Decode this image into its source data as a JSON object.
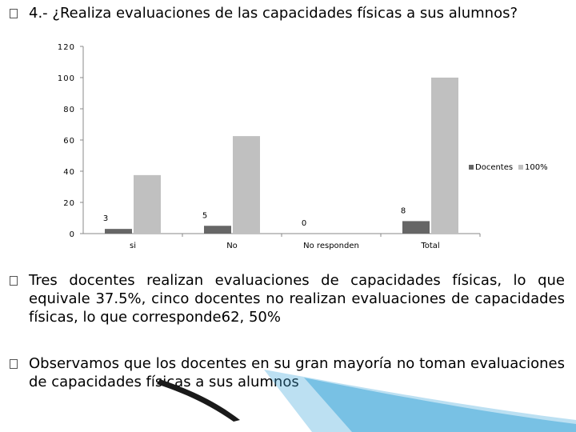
{
  "slide": {
    "title": "4.- ¿Realiza evaluaciones de las capacidades físicas a sus alumnos?",
    "paragraphs": [
      "Tres docentes realizan evaluaciones de capacidades físicas, lo que equivale  37.5%, cinco docentes no realizan evaluaciones de capacidades físicas, lo que corresponde62, 50%",
      "Observamos que los docentes en su gran mayoría no toman evaluaciones de capacidades físicas a sus alumnos"
    ]
  },
  "chart_data": {
    "type": "bar",
    "categories": [
      "si",
      "No",
      "No responden",
      "Total"
    ],
    "series": [
      {
        "name": "Docentes",
        "values": [
          3,
          5,
          0,
          8
        ],
        "color": "#666666",
        "labels": [
          "3",
          "5",
          "0",
          "8"
        ]
      },
      {
        "name": "100%",
        "values": [
          37.5,
          62.5,
          0,
          100
        ],
        "color": "#c0c0c0"
      }
    ],
    "yticks": [
      "0",
      "20",
      "40",
      "60",
      "80",
      "100",
      "120"
    ],
    "ylim": [
      0,
      120
    ],
    "grid": false,
    "legend": "right",
    "xlabel": "",
    "ylabel": "",
    "title": ""
  },
  "colors": {
    "decoration_blue": "#3fa7d9",
    "decoration_dark": "#1a1a1a"
  }
}
